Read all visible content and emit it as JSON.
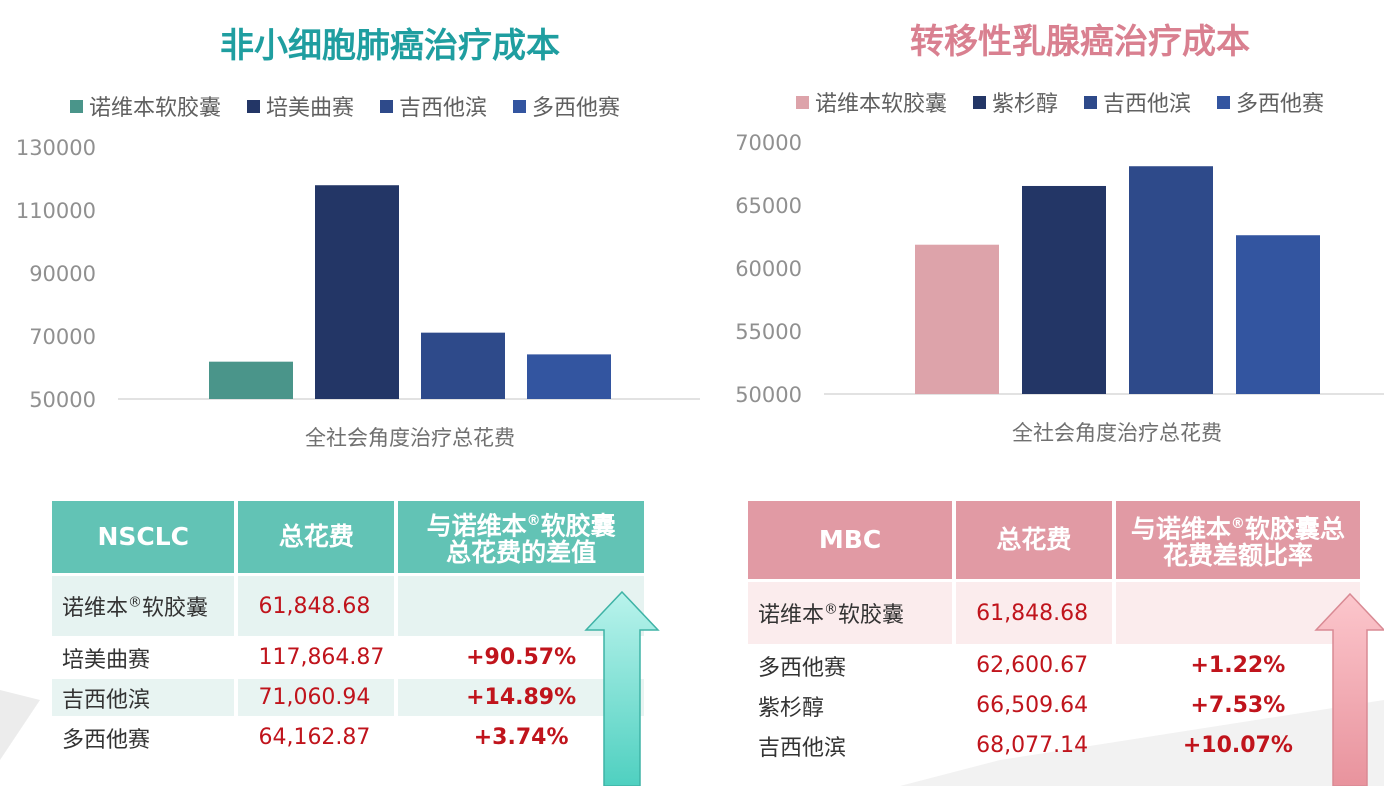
{
  "left_chart": {
    "title": "非小细胞肺癌治疗成本",
    "legend": [
      "诺维本软胶囊",
      "培美曲赛",
      "吉西他滨",
      "多西他赛"
    ],
    "colors": [
      "#4a958a",
      "#233666",
      "#2e4a8a",
      "#3355a0"
    ]
  },
  "right_chart": {
    "title": "转移性乳腺癌治疗成本",
    "legend": [
      "诺维本软胶囊",
      "紫杉醇",
      "吉西他滨",
      "多西他赛"
    ],
    "colors": [
      "#dda3aa",
      "#233666",
      "#2e4a8a",
      "#3355a0"
    ]
  },
  "chart_data": [
    {
      "type": "bar",
      "title": "非小细胞肺癌治疗成本",
      "categories": [
        "全社会角度治疗总花费"
      ],
      "series": [
        {
          "name": "诺维本软胶囊",
          "values": [
            61848.68
          ]
        },
        {
          "name": "培美曲赛",
          "values": [
            117864.87
          ]
        },
        {
          "name": "吉西他滨",
          "values": [
            71060.94
          ]
        },
        {
          "name": "多西他赛",
          "values": [
            64162.87
          ]
        }
      ],
      "xlabel": "全社会角度治疗总花费",
      "ylabel": "",
      "ylim": [
        50000,
        130000
      ],
      "yticks": [
        50000,
        70000,
        90000,
        110000,
        130000
      ],
      "legend_position": "top"
    },
    {
      "type": "bar",
      "title": "转移性乳腺癌治疗成本",
      "categories": [
        "全社会角度治疗总花费"
      ],
      "series": [
        {
          "name": "诺维本软胶囊",
          "values": [
            61848.68
          ]
        },
        {
          "name": "紫杉醇",
          "values": [
            66509.64
          ]
        },
        {
          "name": "吉西他滨",
          "values": [
            68077.14
          ]
        },
        {
          "name": "多西他赛",
          "values": [
            62600.67
          ]
        }
      ],
      "xlabel": "全社会角度治疗总花费",
      "ylabel": "",
      "ylim": [
        50000,
        70000
      ],
      "yticks": [
        50000,
        55000,
        60000,
        65000,
        70000
      ],
      "legend_position": "top"
    }
  ],
  "left_table": {
    "headers": [
      "NSCLC",
      "总花费",
      "与诺维本®软胶囊总花费的差值"
    ],
    "header_third_line1_pre": "与诺维本",
    "header_third_line1_sup": "®",
    "header_third_line1_post": "软胶囊",
    "header_third_line2": "总花费的差值",
    "first_row": {
      "drug_pre": "诺维本",
      "drug_sup": "®",
      "drug_post": "软胶囊",
      "cost": "61,848.68",
      "diff": ""
    },
    "rows": [
      {
        "drug": "培美曲赛",
        "cost": "117,864.87",
        "diff": "+90.57%"
      },
      {
        "drug": "吉西他滨",
        "cost": "71,060.94",
        "diff": "+14.89%"
      },
      {
        "drug": "多西他赛",
        "cost": "64,162.87",
        "diff": "+3.74%"
      }
    ]
  },
  "right_table": {
    "headers": [
      "MBC",
      "总花费",
      "与诺维本®软胶囊总花费差额比率"
    ],
    "header_third_line1_pre": "与诺维本",
    "header_third_line1_sup": "®",
    "header_third_line1_post": "软胶囊总",
    "header_third_line2": "花费差额比率",
    "first_row": {
      "drug_pre": "诺维本",
      "drug_sup": "®",
      "drug_post": "软胶囊",
      "cost": "61,848.68",
      "diff": ""
    },
    "rows": [
      {
        "drug": "多西他赛",
        "cost": "62,600.67",
        "diff": "+1.22%"
      },
      {
        "drug": "紫杉醇",
        "cost": "66,509.64",
        "diff": "+7.53%"
      },
      {
        "drug": "吉西他滨",
        "cost": "68,077.14",
        "diff": "+10.07%"
      }
    ]
  },
  "arrows": {
    "left_color": "#7fe2d6",
    "right_color": "#f4a9b2"
  }
}
